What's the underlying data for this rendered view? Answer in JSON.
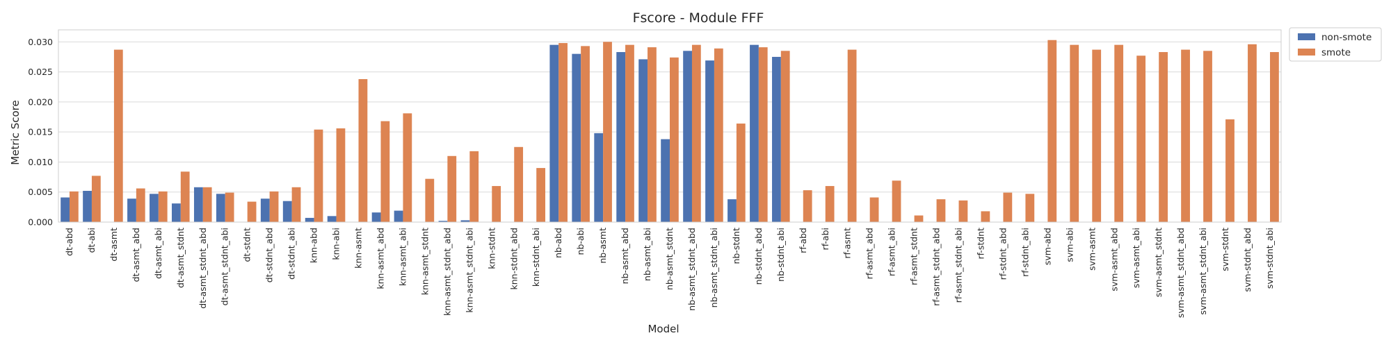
{
  "chart_data": {
    "type": "bar",
    "title": "Fscore - Module FFF",
    "xlabel": "Model",
    "ylabel": "Metric Score",
    "ylim": [
      0,
      0.032
    ],
    "yticks": [
      "0.000",
      "0.005",
      "0.010",
      "0.015",
      "0.020",
      "0.025",
      "0.030"
    ],
    "ytick_values": [
      0,
      0.005,
      0.01,
      0.015,
      0.02,
      0.025,
      0.03
    ],
    "grid": "horizontal",
    "legend_position": "outside top-right",
    "categories": [
      "dt-abd",
      "dt-abi",
      "dt-asmt",
      "dt-asmt_abd",
      "dt-asmt_abi",
      "dt-asmt_stdnt",
      "dt-asmt_stdnt_abd",
      "dt-asmt_stdnt_abi",
      "dt-stdnt",
      "dt-stdnt_abd",
      "dt-stdnt_abi",
      "knn-abd",
      "knn-abi",
      "knn-asmt",
      "knn-asmt_abd",
      "knn-asmt_abi",
      "knn-asmt_stdnt",
      "knn-asmt_stdnt_abd",
      "knn-asmt_stdnt_abi",
      "knn-stdnt",
      "knn-stdnt_abd",
      "knn-stdnt_abi",
      "nb-abd",
      "nb-abi",
      "nb-asmt",
      "nb-asmt_abd",
      "nb-asmt_abi",
      "nb-asmt_stdnt",
      "nb-asmt_stdnt_abd",
      "nb-asmt_stdnt_abi",
      "nb-stdnt",
      "nb-stdnt_abd",
      "nb-stdnt_abi",
      "rf-abd",
      "rf-abi",
      "rf-asmt",
      "rf-asmt_abd",
      "rf-asmt_abi",
      "rf-asmt_stdnt",
      "rf-asmt_stdnt_abd",
      "rf-asmt_stdnt_abi",
      "rf-stdnt",
      "rf-stdnt_abd",
      "rf-stdnt_abi",
      "svm-abd",
      "svm-abi",
      "svm-asmt",
      "svm-asmt_abd",
      "svm-asmt_abi",
      "svm-asmt_stdnt",
      "svm-asmt_stdnt_abd",
      "svm-asmt_stdnt_abi",
      "svm-stdnt",
      "svm-stdnt_abd",
      "svm-stdnt_abi"
    ],
    "series": [
      {
        "name": "non-smote",
        "color": "#4c72b0",
        "values": [
          0.0041,
          0.0052,
          0,
          0.0039,
          0.0047,
          0.0031,
          0.0058,
          0.0047,
          0,
          0.0039,
          0.0035,
          0.0007,
          0.001,
          0,
          0.0016,
          0.0019,
          0,
          0.0002,
          0.0003,
          0,
          0,
          0,
          0.0295,
          0.028,
          0.0148,
          0.0283,
          0.0271,
          0.0138,
          0.0285,
          0.0269,
          0.0038,
          0.0295,
          0.0275,
          0,
          0,
          0,
          0,
          0,
          0,
          0,
          0,
          0,
          0,
          0,
          0,
          0,
          0,
          0,
          0,
          0,
          0,
          0,
          0,
          0,
          0
        ]
      },
      {
        "name": "smote",
        "color": "#dd8452",
        "values": [
          0.0051,
          0.0077,
          0.0287,
          0.0056,
          0.0051,
          0.0084,
          0.0058,
          0.0049,
          0.0034,
          0.0051,
          0.0058,
          0.0154,
          0.0156,
          0.0238,
          0.0168,
          0.0181,
          0.0072,
          0.011,
          0.0118,
          0.006,
          0.0125,
          0.009,
          0.0298,
          0.0293,
          0.03,
          0.0295,
          0.0291,
          0.0274,
          0.0295,
          0.0289,
          0.0164,
          0.0291,
          0.0285,
          0.0053,
          0.006,
          0.0287,
          0.0041,
          0.0069,
          0.0011,
          0.0038,
          0.0036,
          0.0018,
          0.0049,
          0.0047,
          0.0303,
          0.0295,
          0.0287,
          0.0295,
          0.0277,
          0.0283,
          0.0287,
          0.0285,
          0.0171,
          0.0296,
          0.0283
        ]
      }
    ]
  }
}
